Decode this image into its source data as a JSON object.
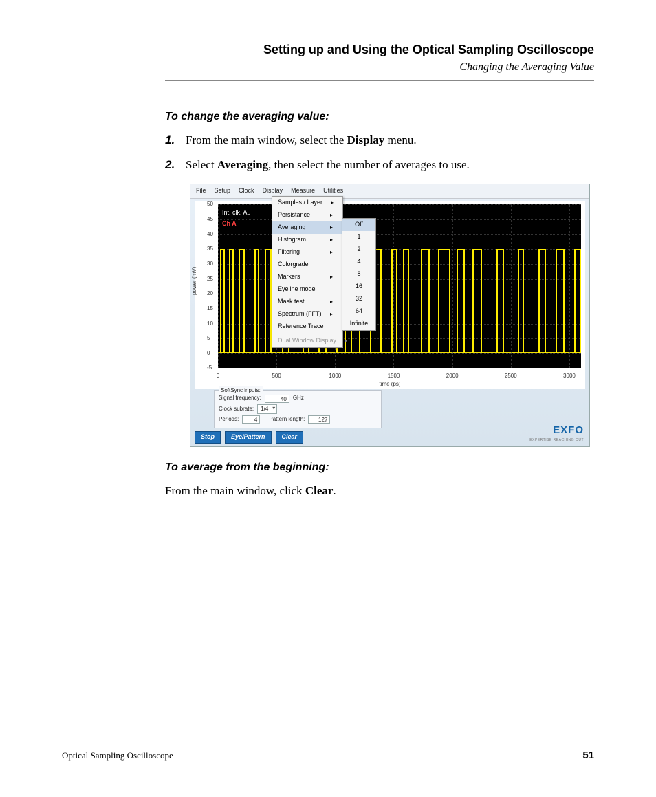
{
  "header": {
    "chapter": "Setting up and Using the Optical Sampling Oscilloscope",
    "section": "Changing the Averaging Value"
  },
  "proc1": {
    "title": "To change the averaging value:",
    "step1_num": "1.",
    "step1_pre": "From the main window, select the ",
    "step1_bold": "Display",
    "step1_post": " menu.",
    "step2_num": "2.",
    "step2_pre": "Select ",
    "step2_bold": "Averaging",
    "step2_post": ", then select the number of averages to use."
  },
  "proc2": {
    "title": "To average from the beginning:",
    "line_pre": "From the main window, click ",
    "line_bold": "Clear",
    "line_post": "."
  },
  "footer": {
    "doc_name": "Optical Sampling Oscilloscope",
    "page": "51"
  },
  "screenshot": {
    "menubar": [
      "File",
      "Setup",
      "Clock",
      "Display",
      "Measure",
      "Utilities"
    ],
    "display_menu": {
      "items": [
        {
          "label": "Samples / Layer",
          "arrow": true
        },
        {
          "label": "Persistance",
          "arrow": true
        },
        {
          "label": "Averaging",
          "arrow": true,
          "highlight": true
        },
        {
          "label": "Histogram",
          "arrow": true
        },
        {
          "label": "Filtering",
          "arrow": true
        },
        {
          "label": "Colorgrade"
        },
        {
          "label": "Markers",
          "arrow": true
        },
        {
          "label": "Eyeline mode"
        },
        {
          "label": "Mask test",
          "arrow": true
        },
        {
          "label": "Spectrum (FFT)",
          "arrow": true
        },
        {
          "label": "Reference Trace"
        },
        {
          "sep": true
        },
        {
          "label": "Dual Window Display",
          "arrow": true,
          "disabled": true
        }
      ]
    },
    "averaging_submenu": [
      "Off",
      "1",
      "2",
      "4",
      "8",
      "16",
      "32",
      "64",
      "Infinite"
    ],
    "plot": {
      "ylabel": "power (mV)",
      "xlabel": "time (ps)",
      "yticks": [
        {
          "v": 50,
          "label": "50"
        },
        {
          "v": 45,
          "label": "45"
        },
        {
          "v": 40,
          "label": "40"
        },
        {
          "v": 35,
          "label": "35"
        },
        {
          "v": 30,
          "label": "30"
        },
        {
          "v": 25,
          "label": "25"
        },
        {
          "v": 20,
          "label": "20"
        },
        {
          "v": 15,
          "label": "15"
        },
        {
          "v": 10,
          "label": "10"
        },
        {
          "v": 5,
          "label": "5"
        },
        {
          "v": 0,
          "label": "0"
        },
        {
          "v": -5,
          "label": "-5"
        }
      ],
      "ylim": [
        -5,
        50
      ],
      "xticks": [
        {
          "v": 0,
          "label": "0"
        },
        {
          "v": 500,
          "label": "500"
        },
        {
          "v": 1000,
          "label": "1000"
        },
        {
          "v": 1500,
          "label": "1500"
        },
        {
          "v": 2000,
          "label": "2000"
        },
        {
          "v": 2500,
          "label": "2500"
        },
        {
          "v": 3000,
          "label": "3000"
        }
      ],
      "xlim": [
        0,
        3100
      ],
      "overlay1": "Int. clk. Au",
      "overlay2": "Ch A",
      "high_level": 35,
      "low_level": 0,
      "trace_color": "#ffee00",
      "pulse_edges": [
        20,
        60,
        95,
        135,
        175,
        230,
        310,
        355,
        400,
        460,
        545,
        610,
        720,
        780,
        860,
        930,
        1010,
        1090,
        1135,
        1215,
        1295,
        1400,
        1480,
        1530,
        1580,
        1630,
        1730,
        1810,
        1880,
        1985,
        2040,
        2110,
        2175,
        2255,
        2380,
        2445,
        2560,
        2615,
        2735,
        2800,
        2880,
        2960,
        3040,
        3100
      ],
      "gridline_color": "#555555",
      "background_color": "#000000"
    },
    "softsync": {
      "legend": "SoftSync inputs:",
      "signal_freq_label": "Signal frequency:",
      "signal_freq_value": "40",
      "signal_freq_unit": "GHz",
      "clock_subrate_label": "Clock subrate:",
      "clock_subrate_value": "1/4",
      "periods_label": "Periods:",
      "periods_value": "4",
      "pattern_len_label": "Pattern length:",
      "pattern_len_value": "127"
    },
    "buttons": {
      "stop": "Stop",
      "eye": "Eye/Pattern",
      "clear": "Clear"
    },
    "logo": {
      "brand": "EXFO",
      "tag": "EXPERTISE REACHING OUT"
    }
  }
}
